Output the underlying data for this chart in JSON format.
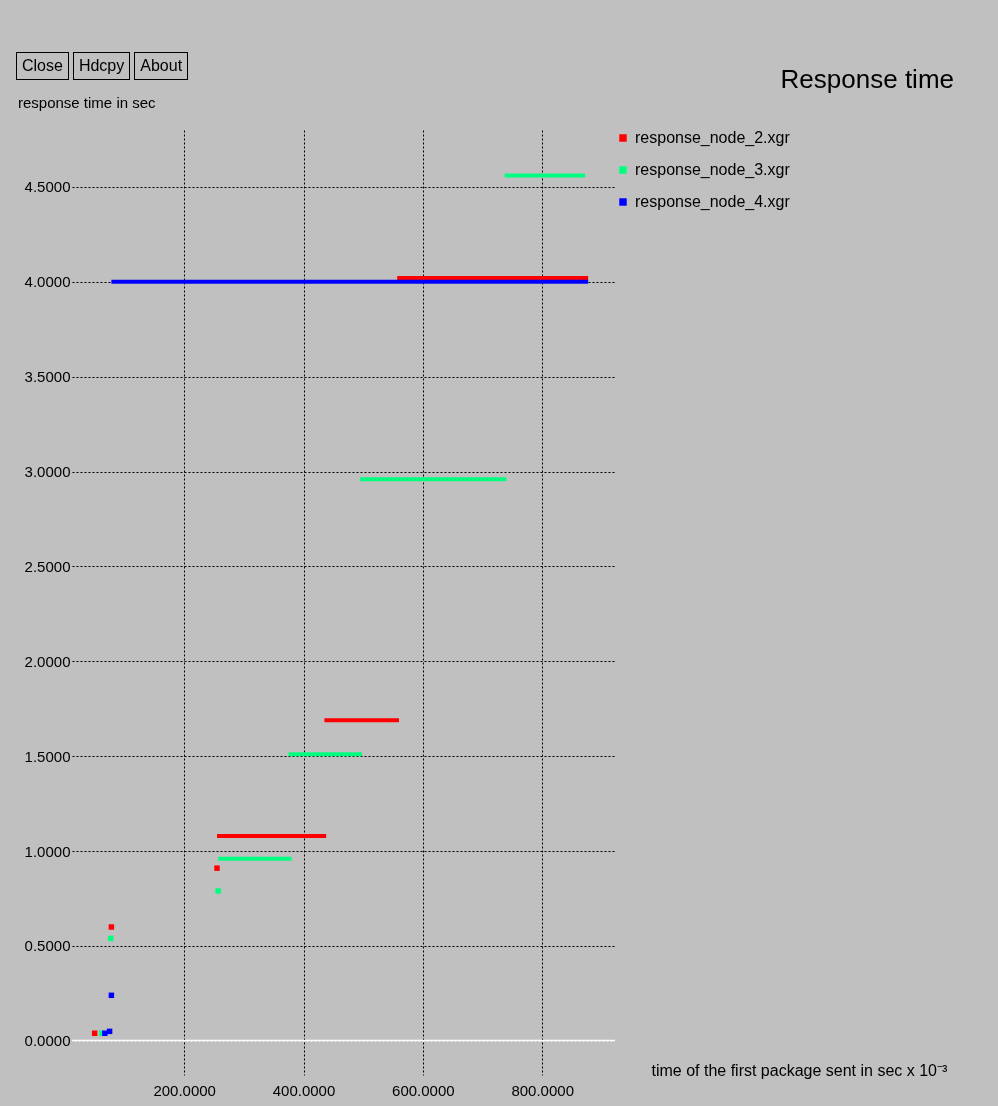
{
  "chart_data": {
    "type": "line",
    "title": "Response time",
    "ylabel": "response time in sec",
    "xlabel": "time of the first package sent in sec x 10⁻³",
    "annotations": [
      "Close",
      "Hdcpy",
      "About"
    ],
    "xlim": [
      12,
      922
    ],
    "ylim": [
      -0.18,
      4.8
    ],
    "xticks": [
      {
        "value": 200,
        "label": "200.0000"
      },
      {
        "value": 400,
        "label": "400.0000"
      },
      {
        "value": 600,
        "label": "600.0000"
      },
      {
        "value": 800,
        "label": "800.0000"
      }
    ],
    "yticks": [
      {
        "value": 0,
        "label": "0.0000"
      },
      {
        "value": 0.5,
        "label": "0.5000"
      },
      {
        "value": 1,
        "label": "1.0000"
      },
      {
        "value": 1.5,
        "label": "1.5000"
      },
      {
        "value": 2,
        "label": "2.0000"
      },
      {
        "value": 2.5,
        "label": "2.5000"
      },
      {
        "value": 3,
        "label": "3.0000"
      },
      {
        "value": 3.5,
        "label": "3.5000"
      },
      {
        "value": 4,
        "label": "4.0000"
      },
      {
        "value": 4.5,
        "label": "4.5000"
      }
    ],
    "grid": true,
    "legend": "top right",
    "ref_lines": [
      {
        "axis": "y",
        "value": 0,
        "color": "#ffffff"
      }
    ],
    "series": [
      {
        "name": "response_node_2.xgr",
        "color": "#ff0000",
        "x": [
          255,
          438
        ],
        "values": [
          1.08,
          1.08
        ]
      },
      {
        "color": "#ff0000",
        "x": [
          435,
          560
        ],
        "values": [
          1.69,
          1.69
        ]
      },
      {
        "color": "#ff0000",
        "x": [
          557,
          877
        ],
        "values": [
          4.02,
          4.02
        ]
      },
      {
        "name": "response_node_3.xgr",
        "color": "#00ff7f",
        "x": [
          257,
          380
        ],
        "values": [
          0.96,
          0.96
        ]
      },
      {
        "color": "#00ff7f",
        "x": [
          375,
          498
        ],
        "values": [
          1.51,
          1.51
        ]
      },
      {
        "color": "#00ff7f",
        "x": [
          495,
          740
        ],
        "values": [
          2.96,
          2.96
        ]
      },
      {
        "color": "#00ff7f",
        "x": [
          737,
          872
        ],
        "values": [
          4.56,
          4.56
        ]
      },
      {
        "name": "response_node_4.xgr",
        "color": "#0000ff",
        "x": [
          78,
          877
        ],
        "values": [
          4.0,
          4.0
        ]
      },
      {
        "type": "scatter",
        "color": "#ff0000",
        "x": [
          50,
          78,
          255
        ],
        "values": [
          0.04,
          0.6,
          0.91
        ]
      },
      {
        "type": "scatter",
        "color": "#00ff7f",
        "x": [
          62,
          77,
          257
        ],
        "values": [
          0.04,
          0.54,
          0.79
        ]
      },
      {
        "type": "scatter",
        "color": "#0000ff",
        "x": [
          67,
          75,
          78
        ],
        "values": [
          0.04,
          0.05,
          0.24
        ]
      }
    ]
  }
}
